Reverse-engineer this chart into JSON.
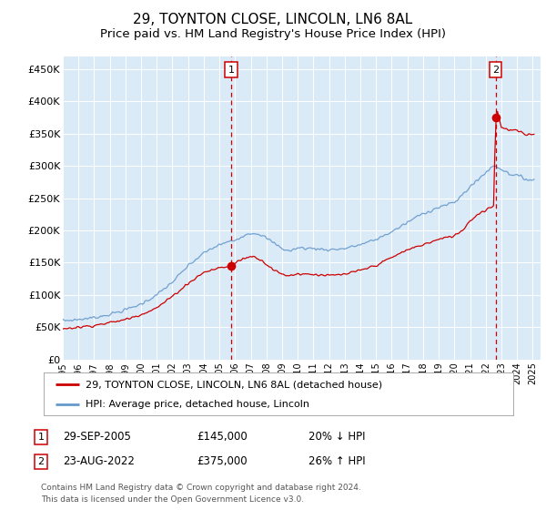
{
  "title": "29, TOYNTON CLOSE, LINCOLN, LN6 8AL",
  "subtitle": "Price paid vs. HM Land Registry's House Price Index (HPI)",
  "background_color": "#ffffff",
  "plot_bg_color": "#daeaf7",
  "grid_color": "#c8d8e8",
  "title_fontsize": 11,
  "subtitle_fontsize": 9.5,
  "ylim": [
    0,
    470000
  ],
  "yticks": [
    0,
    50000,
    100000,
    150000,
    200000,
    250000,
    300000,
    350000,
    400000,
    450000
  ],
  "ytick_labels": [
    "£0",
    "£50K",
    "£100K",
    "£150K",
    "£200K",
    "£250K",
    "£300K",
    "£350K",
    "£400K",
    "£450K"
  ],
  "xlim_start": 1995.0,
  "xlim_end": 2025.5,
  "xtick_years": [
    1995,
    1996,
    1997,
    1998,
    1999,
    2000,
    2001,
    2002,
    2003,
    2004,
    2005,
    2006,
    2007,
    2008,
    2009,
    2010,
    2011,
    2012,
    2013,
    2014,
    2015,
    2016,
    2017,
    2018,
    2019,
    2020,
    2021,
    2022,
    2023,
    2024,
    2025
  ],
  "sale1_x": 2005.75,
  "sale1_y": 145000,
  "sale1_label": "1",
  "sale2_x": 2022.64,
  "sale2_y": 375000,
  "sale2_label": "2",
  "red_line_color": "#cc0000",
  "blue_line_color": "#6699cc",
  "vline_color": "#cc0000",
  "legend_entries": [
    "29, TOYNTON CLOSE, LINCOLN, LN6 8AL (detached house)",
    "HPI: Average price, detached house, Lincoln"
  ],
  "footer_text1": "Contains HM Land Registry data © Crown copyright and database right 2024.",
  "footer_text2": "This data is licensed under the Open Government Licence v3.0.",
  "table_row1": [
    "1",
    "29-SEP-2005",
    "£145,000",
    "20% ↓ HPI"
  ],
  "table_row2": [
    "2",
    "23-AUG-2022",
    "£375,000",
    "26% ↑ HPI"
  ]
}
